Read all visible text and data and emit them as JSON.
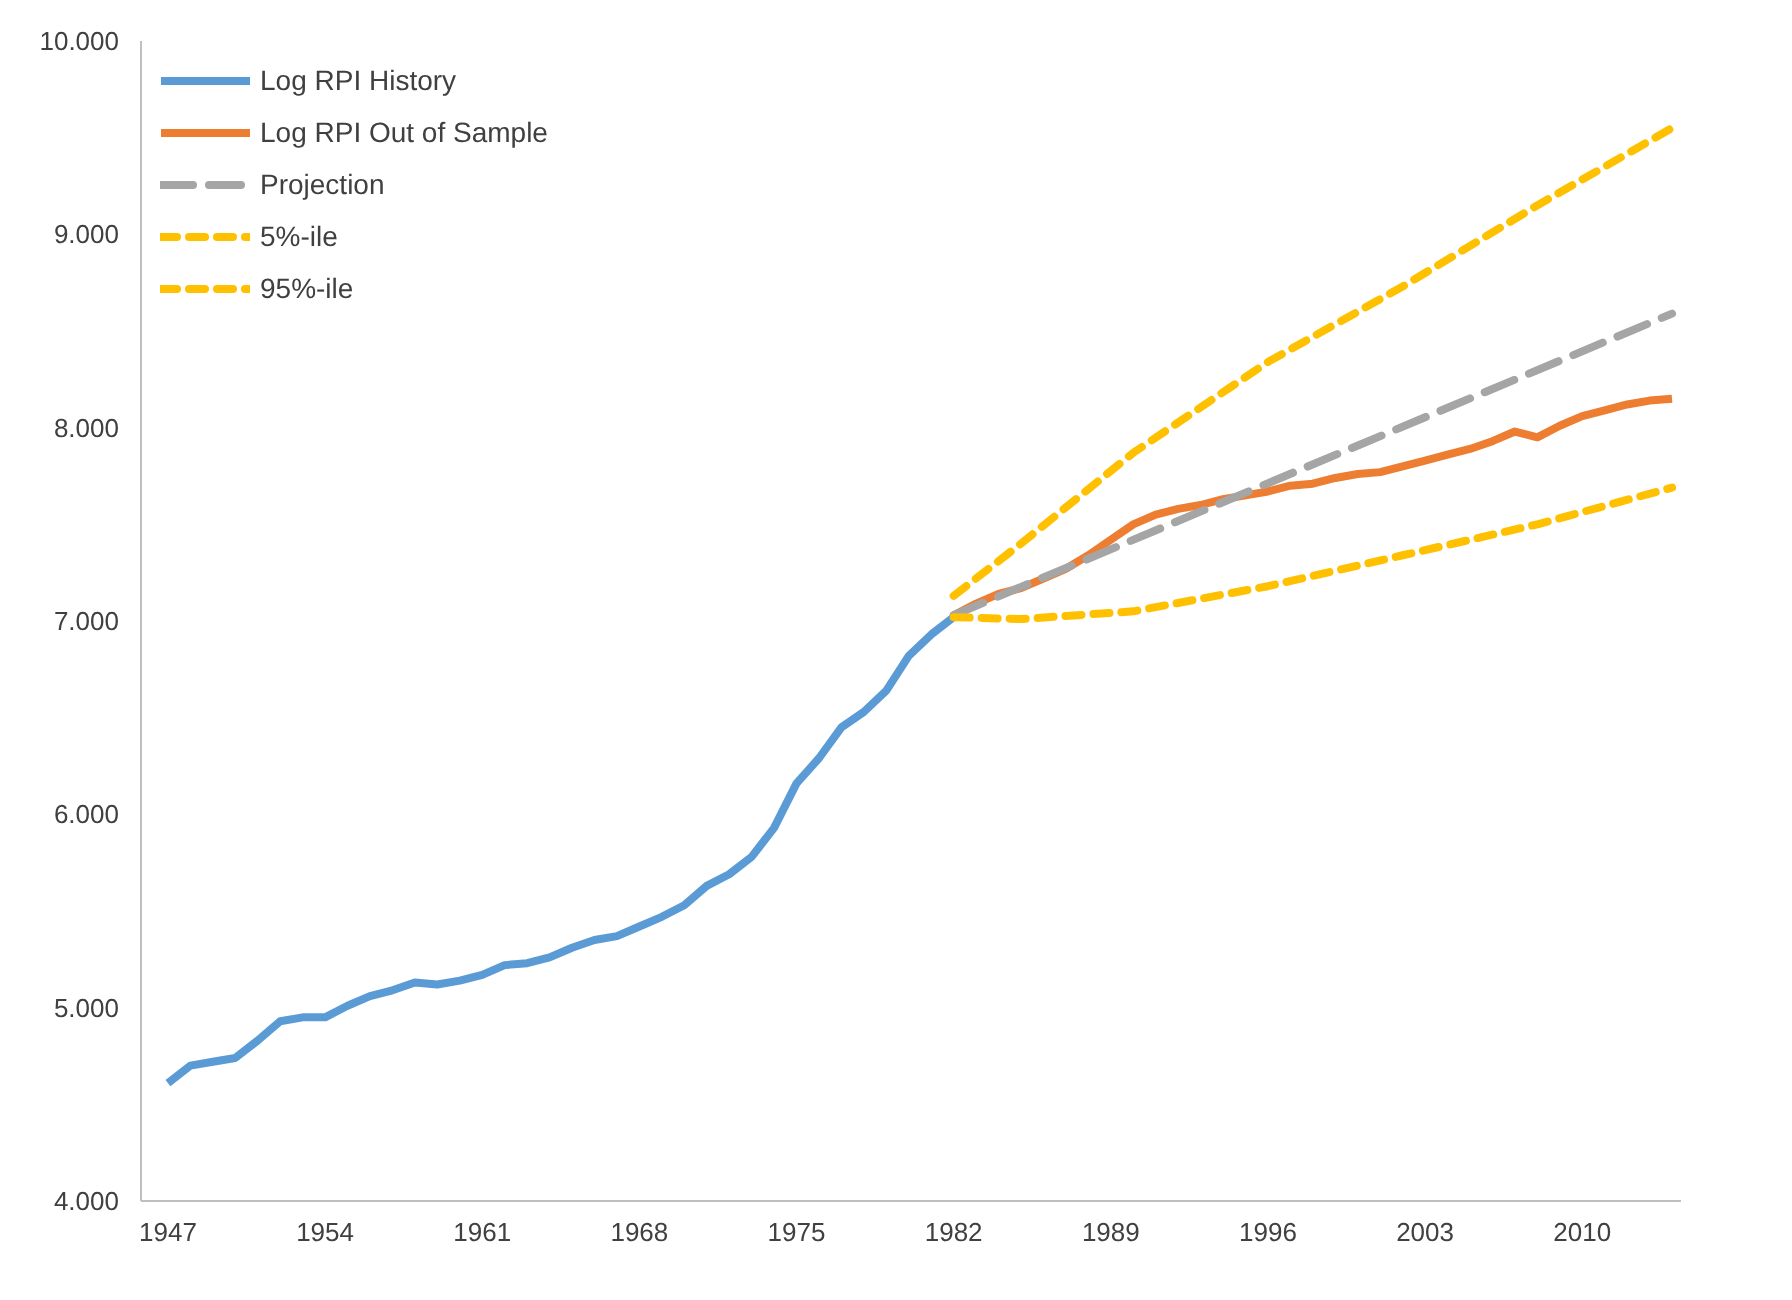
{
  "chart_data": {
    "type": "line",
    "xlim": [
      1945.8,
      2014.4
    ],
    "xticks": [
      1947,
      1954,
      1961,
      1968,
      1975,
      1982,
      1989,
      1996,
      2003,
      2010
    ],
    "ylim": [
      4,
      10
    ],
    "yticks": [
      {
        "value": 4,
        "label": "4.000"
      },
      {
        "value": 5,
        "label": "5.000"
      },
      {
        "value": 6,
        "label": "6.000"
      },
      {
        "value": 7,
        "label": "7.000"
      },
      {
        "value": 8,
        "label": "8.000"
      },
      {
        "value": 9,
        "label": "9.000"
      },
      {
        "value": 10,
        "label": "10.000"
      }
    ],
    "grid": false,
    "legend": "top left",
    "marker": "none",
    "series": [
      {
        "name": "Log RPI History",
        "color": "#5b9bd5",
        "line_style": "solid",
        "x": [
          1947,
          1948,
          1949,
          1950,
          1951,
          1952,
          1953,
          1954,
          1955,
          1956,
          1957,
          1958,
          1959,
          1960,
          1961,
          1962,
          1963,
          1964,
          1965,
          1966,
          1967,
          1968,
          1969,
          1970,
          1971,
          1972,
          1973,
          1974,
          1975,
          1976,
          1977,
          1978,
          1979,
          1980,
          1981,
          1982
        ],
        "values": [
          4.61,
          4.7,
          4.72,
          4.74,
          4.83,
          4.93,
          4.95,
          4.95,
          5.01,
          5.06,
          5.09,
          5.13,
          5.12,
          5.14,
          5.17,
          5.22,
          5.23,
          5.26,
          5.31,
          5.35,
          5.37,
          5.42,
          5.47,
          5.53,
          5.63,
          5.69,
          5.78,
          5.93,
          6.16,
          6.29,
          6.45,
          6.53,
          6.64,
          6.82,
          6.93,
          7.02
        ]
      },
      {
        "name": "Log RPI Out of Sample",
        "color": "#ed7d31",
        "line_style": "solid",
        "x": [
          1982,
          1983,
          1984,
          1985,
          1986,
          1987,
          1988,
          1989,
          1990,
          1991,
          1992,
          1993,
          1994,
          1995,
          1996,
          1997,
          1998,
          1999,
          2000,
          2001,
          2002,
          2003,
          2004,
          2005,
          2006,
          2007,
          2008,
          2009,
          2010,
          2011,
          2012,
          2013,
          2014
        ],
        "values": [
          7.03,
          7.09,
          7.14,
          7.17,
          7.22,
          7.27,
          7.34,
          7.42,
          7.5,
          7.55,
          7.58,
          7.6,
          7.63,
          7.65,
          7.67,
          7.7,
          7.71,
          7.74,
          7.76,
          7.77,
          7.8,
          7.83,
          7.86,
          7.89,
          7.93,
          7.98,
          7.95,
          8.01,
          8.06,
          8.09,
          8.12,
          8.14,
          8.15
        ]
      },
      {
        "name": "Projection",
        "color": "#a5a5a5",
        "line_style": "dashed",
        "x": [
          1982,
          2014
        ],
        "values": [
          7.03,
          8.59
        ]
      },
      {
        "name": "5%-ile",
        "color": "#ffc000",
        "line_style": "dotted",
        "x": [
          1982,
          1985,
          1990,
          1996,
          2002,
          2008,
          2014
        ],
        "values": [
          7.02,
          7.01,
          7.05,
          7.18,
          7.34,
          7.5,
          7.69
        ]
      },
      {
        "name": "95%-ile",
        "color": "#ffc000",
        "line_style": "dotted",
        "x": [
          1982,
          1985,
          1990,
          1996,
          2002,
          2008,
          2014
        ],
        "values": [
          7.13,
          7.4,
          7.87,
          8.34,
          8.73,
          9.15,
          9.55
        ]
      }
    ]
  }
}
